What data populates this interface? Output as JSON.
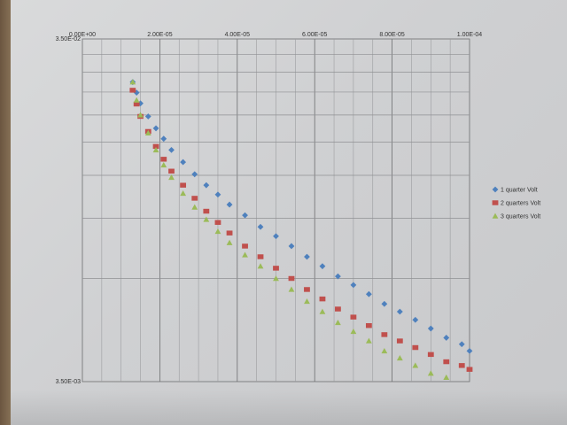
{
  "chart_data": {
    "type": "scatter",
    "title": "",
    "xlabel": "",
    "ylabel": "",
    "x_axis_position": "top",
    "xlim": [
      0,
      0.0001
    ],
    "ylim": [
      0.0035,
      0.035
    ],
    "yscale": "log",
    "grid": true,
    "legend_position": "right",
    "x_tick_labels": [
      "0.00E+00",
      "2.00E-05",
      "4.00E-05",
      "6.00E-05",
      "8.00E-05",
      "1.00E-04"
    ],
    "y_tick_labels": [
      "3.50E-02",
      "3.50E-03"
    ],
    "series": [
      {
        "name": "1 quarter Volt",
        "marker": "diamond",
        "color": "#4f81bd",
        "points": [
          [
            1.3e-05,
            0.0262
          ],
          [
            1.4e-05,
            0.0244
          ],
          [
            1.5e-05,
            0.0227
          ],
          [
            1.7e-05,
            0.0208
          ],
          [
            1.9e-05,
            0.0192
          ],
          [
            2.1e-05,
            0.0179
          ],
          [
            2.3e-05,
            0.0166
          ],
          [
            2.6e-05,
            0.0153
          ],
          [
            2.9e-05,
            0.0141
          ],
          [
            3.2e-05,
            0.0131
          ],
          [
            3.5e-05,
            0.0123
          ],
          [
            3.8e-05,
            0.0115
          ],
          [
            4.2e-05,
            0.0107
          ],
          [
            4.6e-05,
            0.0099
          ],
          [
            5e-05,
            0.0093
          ],
          [
            5.4e-05,
            0.0087
          ],
          [
            5.8e-05,
            0.0081
          ],
          [
            6.2e-05,
            0.0076
          ],
          [
            6.6e-05,
            0.0071
          ],
          [
            7e-05,
            0.0067
          ],
          [
            7.4e-05,
            0.0063
          ],
          [
            7.8e-05,
            0.0059
          ],
          [
            8.2e-05,
            0.0056
          ],
          [
            8.6e-05,
            0.0053
          ],
          [
            9e-05,
            0.005
          ],
          [
            9.4e-05,
            0.0047
          ],
          [
            9.8e-05,
            0.0045
          ],
          [
            0.0001,
            0.0043
          ]
        ]
      },
      {
        "name": "2 quarters Volt",
        "marker": "square",
        "color": "#c0504d",
        "points": [
          [
            1.3e-05,
            0.0248
          ],
          [
            1.4e-05,
            0.0226
          ],
          [
            1.5e-05,
            0.0208
          ],
          [
            1.7e-05,
            0.0188
          ],
          [
            1.9e-05,
            0.017
          ],
          [
            2.1e-05,
            0.0156
          ],
          [
            2.3e-05,
            0.0144
          ],
          [
            2.6e-05,
            0.0131
          ],
          [
            2.9e-05,
            0.012
          ],
          [
            3.2e-05,
            0.011
          ],
          [
            3.5e-05,
            0.0102
          ],
          [
            3.8e-05,
            0.0095
          ],
          [
            4.2e-05,
            0.0087
          ],
          [
            4.6e-05,
            0.0081
          ],
          [
            5e-05,
            0.0075
          ],
          [
            5.4e-05,
            0.007
          ],
          [
            5.8e-05,
            0.0065
          ],
          [
            6.2e-05,
            0.0061
          ],
          [
            6.6e-05,
            0.0057
          ],
          [
            7e-05,
            0.0054
          ],
          [
            7.4e-05,
            0.0051
          ],
          [
            7.8e-05,
            0.0048
          ],
          [
            8.2e-05,
            0.0046
          ],
          [
            8.6e-05,
            0.0044
          ],
          [
            9e-05,
            0.0042
          ],
          [
            9.4e-05,
            0.004
          ],
          [
            9.8e-05,
            0.0039
          ],
          [
            0.0001,
            0.0038
          ]
        ]
      },
      {
        "name": "3 quarters Volt",
        "marker": "triangle",
        "color": "#9bbb59",
        "points": [
          [
            1.3e-05,
            0.0262
          ],
          [
            1.4e-05,
            0.0232
          ],
          [
            1.5e-05,
            0.021
          ],
          [
            1.7e-05,
            0.0186
          ],
          [
            1.9e-05,
            0.0166
          ],
          [
            2.1e-05,
            0.015
          ],
          [
            2.3e-05,
            0.0138
          ],
          [
            2.6e-05,
            0.0124
          ],
          [
            2.9e-05,
            0.0113
          ],
          [
            3.2e-05,
            0.0104
          ],
          [
            3.5e-05,
            0.0096
          ],
          [
            3.8e-05,
            0.0089
          ],
          [
            4.2e-05,
            0.0082
          ],
          [
            4.6e-05,
            0.0076
          ],
          [
            5e-05,
            0.007
          ],
          [
            5.4e-05,
            0.0065
          ],
          [
            5.8e-05,
            0.006
          ],
          [
            6.2e-05,
            0.0056
          ],
          [
            6.6e-05,
            0.0052
          ],
          [
            7e-05,
            0.0049
          ],
          [
            7.4e-05,
            0.0046
          ],
          [
            7.8e-05,
            0.0043
          ],
          [
            8.2e-05,
            0.0041
          ],
          [
            8.6e-05,
            0.0039
          ],
          [
            9e-05,
            0.0037
          ],
          [
            9.4e-05,
            0.0036
          ]
        ]
      }
    ]
  }
}
